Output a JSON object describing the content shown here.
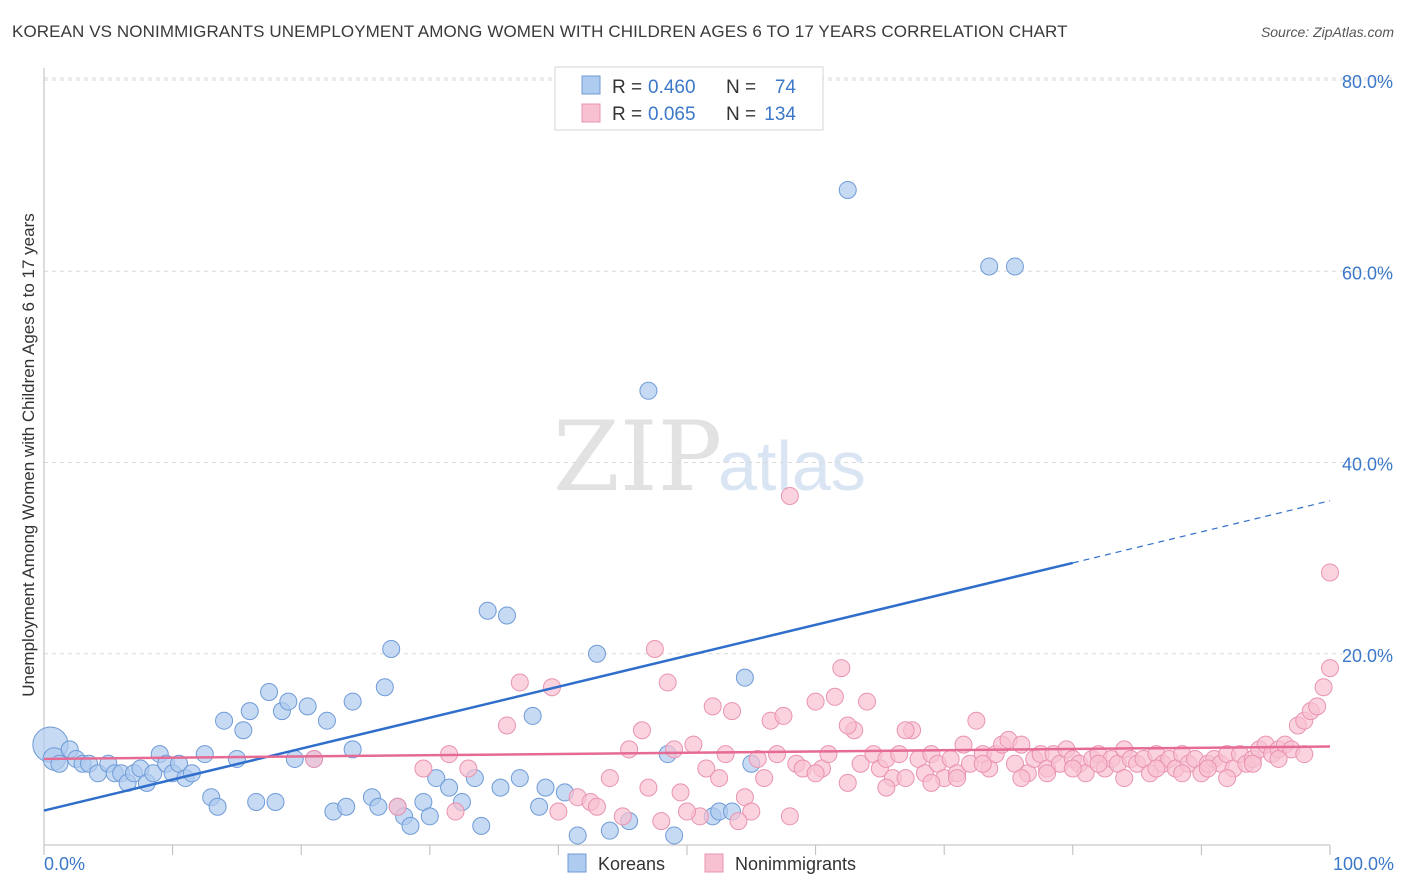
{
  "title": "KOREAN VS NONIMMIGRANTS UNEMPLOYMENT AMONG WOMEN WITH CHILDREN AGES 6 TO 17 YEARS CORRELATION CHART",
  "source": "Source: ZipAtlas.com",
  "watermark": {
    "zip": "ZIP",
    "atlas": "atlas"
  },
  "colors": {
    "koreans_fill": "#aecbf0",
    "koreans_stroke": "#6f9bd6",
    "koreans_line": "#2f6fcb",
    "nonimm_fill": "#f8c1d2",
    "nonimm_stroke": "#e993b0",
    "nonimm_line": "#e56b94",
    "tick_text": "#3b78c8",
    "grid": "#d9d9d9"
  },
  "legend": {
    "koreans": {
      "r_label": "R =",
      "r_value": "0.460",
      "n_label": "N =",
      "n_value": "74"
    },
    "nonimm": {
      "r_label": "R =",
      "r_value": "0.065",
      "n_label": "N =",
      "n_value": "134"
    }
  },
  "bottom_legend": [
    "Koreans",
    "Nonimmigrants"
  ],
  "chart_data": {
    "type": "scatter",
    "xlabel": "",
    "ylabel": "Unemployment Among Women with Children Ages 6 to 17 years",
    "xlim": [
      0,
      100
    ],
    "ylim": [
      0,
      80
    ],
    "x_tick_labels": [
      "0.0%",
      "100.0%"
    ],
    "y_ticks": [
      20,
      40,
      60,
      80
    ],
    "y_tick_labels": [
      "20.0%",
      "40.0%",
      "60.0%",
      "80.0%"
    ],
    "grid": true,
    "legend_position": "top-center",
    "series": [
      {
        "name": "Koreans",
        "trend": {
          "x": [
            0,
            80
          ],
          "y": [
            3.6,
            29.5
          ],
          "dashed_to": [
            100,
            36.0
          ]
        },
        "points": [
          [
            0.5,
            10.5,
            22
          ],
          [
            0.8,
            9.0,
            14
          ],
          [
            1.2,
            8.5,
            12
          ],
          [
            2.0,
            10.0,
            10
          ],
          [
            2.5,
            9.0,
            10
          ],
          [
            3.0,
            8.5,
            10
          ],
          [
            3.5,
            8.5,
            10
          ],
          [
            4.2,
            7.5,
            10
          ],
          [
            5.0,
            8.5,
            10
          ],
          [
            5.5,
            7.5,
            10
          ],
          [
            6.0,
            7.5,
            10
          ],
          [
            6.5,
            6.5,
            10
          ],
          [
            7.0,
            7.5,
            10
          ],
          [
            7.5,
            8.0,
            10
          ],
          [
            8.0,
            6.5,
            10
          ],
          [
            8.5,
            7.5,
            10
          ],
          [
            9.0,
            9.5,
            10
          ],
          [
            9.5,
            8.5,
            10
          ],
          [
            10.0,
            7.5,
            10
          ],
          [
            10.5,
            8.5,
            10
          ],
          [
            11.0,
            7.0,
            10
          ],
          [
            11.5,
            7.5,
            10
          ],
          [
            12.5,
            9.5,
            10
          ],
          [
            13.0,
            5.0,
            10
          ],
          [
            13.5,
            4.0,
            10
          ],
          [
            14.0,
            13.0,
            10
          ],
          [
            15.0,
            9.0,
            10
          ],
          [
            15.5,
            12.0,
            10
          ],
          [
            16.0,
            14.0,
            10
          ],
          [
            16.5,
            4.5,
            10
          ],
          [
            17.5,
            16.0,
            10
          ],
          [
            18.0,
            4.5,
            10
          ],
          [
            18.5,
            14.0,
            10
          ],
          [
            19.0,
            15.0,
            10
          ],
          [
            19.5,
            9.0,
            10
          ],
          [
            20.5,
            14.5,
            10
          ],
          [
            21.0,
            9.0,
            10
          ],
          [
            22.0,
            13.0,
            10
          ],
          [
            22.5,
            3.5,
            10
          ],
          [
            23.5,
            4.0,
            10
          ],
          [
            24.0,
            10.0,
            10
          ],
          [
            24.0,
            15.0,
            10
          ],
          [
            25.5,
            5.0,
            10
          ],
          [
            26.0,
            4.0,
            10
          ],
          [
            26.5,
            16.5,
            10
          ],
          [
            27.0,
            20.5,
            10
          ],
          [
            27.5,
            4.0,
            10
          ],
          [
            28.0,
            3.0,
            10
          ],
          [
            28.5,
            2.0,
            10
          ],
          [
            29.5,
            4.5,
            10
          ],
          [
            30.0,
            3.0,
            10
          ],
          [
            30.5,
            7.0,
            10
          ],
          [
            31.5,
            6.0,
            10
          ],
          [
            32.5,
            4.5,
            10
          ],
          [
            33.5,
            7.0,
            10
          ],
          [
            34.0,
            2.0,
            10
          ],
          [
            34.5,
            24.5,
            10
          ],
          [
            35.5,
            6.0,
            10
          ],
          [
            36.0,
            24.0,
            10
          ],
          [
            37.0,
            7.0,
            10
          ],
          [
            38.0,
            13.5,
            10
          ],
          [
            38.5,
            4.0,
            10
          ],
          [
            39.0,
            6.0,
            10
          ],
          [
            40.5,
            5.5,
            10
          ],
          [
            41.5,
            1.0,
            10
          ],
          [
            43.0,
            20.0,
            10
          ],
          [
            44.0,
            1.5,
            10
          ],
          [
            45.5,
            2.5,
            10
          ],
          [
            47.0,
            47.5,
            10
          ],
          [
            48.5,
            9.5,
            10
          ],
          [
            49.0,
            1.0,
            10
          ],
          [
            52.0,
            3.0,
            10
          ],
          [
            52.5,
            3.5,
            10
          ],
          [
            53.5,
            3.5,
            10
          ],
          [
            54.5,
            17.5,
            10
          ],
          [
            55.0,
            8.5,
            10
          ],
          [
            62.5,
            68.5,
            10
          ],
          [
            73.5,
            60.5,
            10
          ],
          [
            75.5,
            60.5,
            10
          ]
        ]
      },
      {
        "name": "Nonimmigrants",
        "trend": {
          "x": [
            0,
            100
          ],
          "y": [
            9.0,
            10.3
          ]
        },
        "points": [
          [
            21.0,
            9.0,
            10
          ],
          [
            27.5,
            4.0,
            10
          ],
          [
            29.5,
            8.0,
            10
          ],
          [
            31.5,
            9.5,
            10
          ],
          [
            32.0,
            3.5,
            10
          ],
          [
            33.0,
            8.0,
            10
          ],
          [
            36.0,
            12.5,
            10
          ],
          [
            37.0,
            17.0,
            10
          ],
          [
            39.5,
            16.5,
            10
          ],
          [
            40.0,
            3.5,
            10
          ],
          [
            41.5,
            5.0,
            10
          ],
          [
            42.5,
            4.5,
            10
          ],
          [
            44.0,
            7.0,
            10
          ],
          [
            45.5,
            10.0,
            10
          ],
          [
            46.5,
            12.0,
            10
          ],
          [
            47.5,
            20.5,
            10
          ],
          [
            48.5,
            17.0,
            10
          ],
          [
            49.0,
            10.0,
            10
          ],
          [
            49.5,
            5.5,
            10
          ],
          [
            50.5,
            10.5,
            10
          ],
          [
            51.0,
            3.0,
            10
          ],
          [
            51.5,
            8.0,
            10
          ],
          [
            52.0,
            14.5,
            10
          ],
          [
            53.0,
            9.5,
            10
          ],
          [
            53.5,
            14.0,
            10
          ],
          [
            54.5,
            5.0,
            10
          ],
          [
            55.0,
            3.5,
            10
          ],
          [
            55.5,
            9.0,
            10
          ],
          [
            56.0,
            7.0,
            10
          ],
          [
            56.5,
            13.0,
            10
          ],
          [
            57.0,
            9.5,
            10
          ],
          [
            57.5,
            13.5,
            10
          ],
          [
            58.0,
            36.5,
            10
          ],
          [
            58.5,
            8.5,
            10
          ],
          [
            59.0,
            8.0,
            10
          ],
          [
            60.0,
            15.0,
            10
          ],
          [
            60.5,
            8.0,
            10
          ],
          [
            61.0,
            9.5,
            10
          ],
          [
            61.5,
            15.5,
            10
          ],
          [
            62.0,
            18.5,
            10
          ],
          [
            62.5,
            6.5,
            10
          ],
          [
            63.0,
            12.0,
            10
          ],
          [
            63.5,
            8.5,
            10
          ],
          [
            64.0,
            15.0,
            10
          ],
          [
            64.5,
            9.5,
            10
          ],
          [
            65.0,
            8.0,
            10
          ],
          [
            65.5,
            9.0,
            10
          ],
          [
            66.0,
            7.0,
            10
          ],
          [
            66.5,
            9.5,
            10
          ],
          [
            67.0,
            7.0,
            10
          ],
          [
            67.5,
            12.0,
            10
          ],
          [
            68.0,
            9.0,
            10
          ],
          [
            68.5,
            7.5,
            10
          ],
          [
            69.0,
            9.5,
            10
          ],
          [
            69.5,
            8.5,
            10
          ],
          [
            70.0,
            7.0,
            10
          ],
          [
            70.5,
            9.0,
            10
          ],
          [
            71.0,
            7.5,
            10
          ],
          [
            71.5,
            10.5,
            10
          ],
          [
            72.0,
            8.5,
            10
          ],
          [
            72.5,
            13.0,
            10
          ],
          [
            73.0,
            9.5,
            10
          ],
          [
            73.5,
            8.0,
            10
          ],
          [
            74.0,
            9.5,
            10
          ],
          [
            74.5,
            10.5,
            10
          ],
          [
            75.0,
            11.0,
            10
          ],
          [
            75.5,
            8.5,
            10
          ],
          [
            76.0,
            10.5,
            10
          ],
          [
            76.5,
            7.5,
            10
          ],
          [
            77.0,
            9.0,
            10
          ],
          [
            77.5,
            9.5,
            10
          ],
          [
            78.0,
            8.0,
            10
          ],
          [
            78.5,
            9.5,
            10
          ],
          [
            79.0,
            8.5,
            10
          ],
          [
            79.5,
            10.0,
            10
          ],
          [
            80.0,
            9.0,
            10
          ],
          [
            80.5,
            8.5,
            10
          ],
          [
            81.0,
            7.5,
            10
          ],
          [
            81.5,
            9.0,
            10
          ],
          [
            82.0,
            9.5,
            10
          ],
          [
            82.5,
            8.0,
            10
          ],
          [
            83.0,
            9.0,
            10
          ],
          [
            83.5,
            8.5,
            10
          ],
          [
            84.0,
            10.0,
            10
          ],
          [
            84.5,
            9.0,
            10
          ],
          [
            85.0,
            8.5,
            10
          ],
          [
            85.5,
            9.0,
            10
          ],
          [
            86.0,
            7.5,
            10
          ],
          [
            86.5,
            9.5,
            10
          ],
          [
            87.0,
            8.5,
            10
          ],
          [
            87.5,
            9.0,
            10
          ],
          [
            88.0,
            8.0,
            10
          ],
          [
            88.5,
            9.5,
            10
          ],
          [
            89.0,
            8.5,
            10
          ],
          [
            89.5,
            9.0,
            10
          ],
          [
            90.0,
            7.5,
            10
          ],
          [
            90.5,
            8.5,
            10
          ],
          [
            91.0,
            9.0,
            10
          ],
          [
            91.5,
            8.5,
            10
          ],
          [
            92.0,
            9.5,
            10
          ],
          [
            92.5,
            8.0,
            10
          ],
          [
            93.0,
            9.5,
            10
          ],
          [
            93.5,
            8.5,
            10
          ],
          [
            94.0,
            9.0,
            10
          ],
          [
            94.5,
            10.0,
            10
          ],
          [
            95.0,
            10.5,
            10
          ],
          [
            95.5,
            9.5,
            10
          ],
          [
            96.0,
            10.0,
            10
          ],
          [
            96.5,
            10.5,
            10
          ],
          [
            97.0,
            10.0,
            10
          ],
          [
            97.5,
            12.5,
            10
          ],
          [
            98.0,
            13.0,
            10
          ],
          [
            98.5,
            14.0,
            10
          ],
          [
            99.0,
            14.5,
            10
          ],
          [
            99.5,
            16.5,
            10
          ],
          [
            100.0,
            18.5,
            10
          ],
          [
            100.0,
            28.5,
            10
          ],
          [
            43.0,
            4.0,
            10
          ],
          [
            45.0,
            3.0,
            10
          ],
          [
            47.0,
            6.0,
            10
          ],
          [
            48.0,
            2.5,
            10
          ],
          [
            50.0,
            3.5,
            10
          ],
          [
            52.5,
            7.0,
            10
          ],
          [
            54.0,
            2.5,
            10
          ],
          [
            58.0,
            3.0,
            10
          ],
          [
            60.0,
            7.5,
            10
          ],
          [
            62.5,
            12.5,
            10
          ],
          [
            65.5,
            6.0,
            10
          ],
          [
            67.0,
            12.0,
            10
          ],
          [
            69.0,
            6.5,
            10
          ],
          [
            71.0,
            7.0,
            10
          ],
          [
            73.0,
            8.5,
            10
          ],
          [
            76.0,
            7.0,
            10
          ],
          [
            78.0,
            7.5,
            10
          ],
          [
            80.0,
            8.0,
            10
          ],
          [
            82.0,
            8.5,
            10
          ],
          [
            84.0,
            7.0,
            10
          ],
          [
            86.5,
            8.0,
            10
          ],
          [
            88.5,
            7.5,
            10
          ],
          [
            90.5,
            8.0,
            10
          ],
          [
            92.0,
            7.0,
            10
          ],
          [
            94.0,
            8.5,
            10
          ],
          [
            96.0,
            9.0,
            10
          ],
          [
            98.0,
            9.5,
            10
          ]
        ]
      }
    ]
  }
}
